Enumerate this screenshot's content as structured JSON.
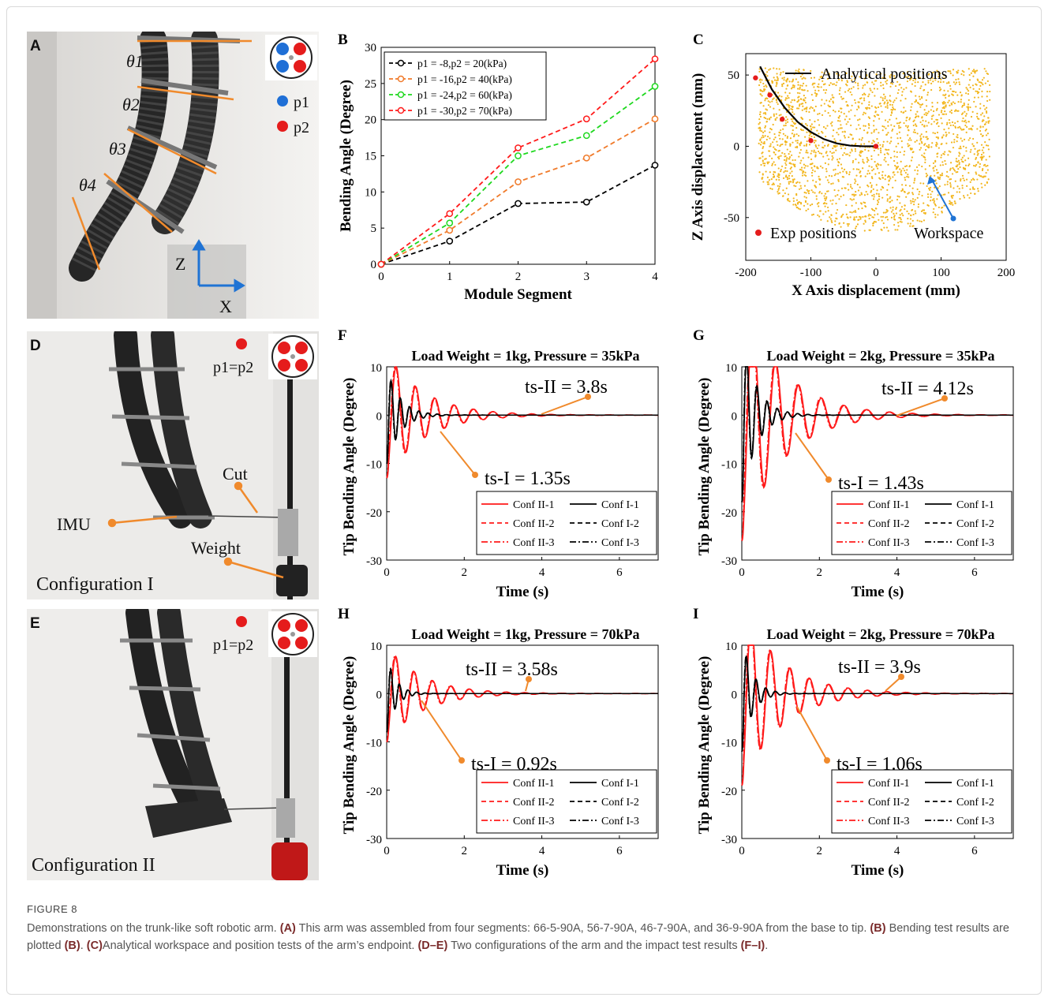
{
  "figure_label": "FIGURE 8",
  "caption": {
    "t1": "Demonstrations on the trunk-like soft robotic arm. ",
    "b1": "(A)",
    "t2": " This arm was assembled from four segments: 66-5-90A, 56-7-90A, 46-7-90A, and 36-9-90A from the base to tip. ",
    "b2": "(B)",
    "t3": " Bending test results are plotted ",
    "b3": "(B)",
    "t4": ". ",
    "b4": "(C)",
    "t5": "Analytical workspace and position tests of the arm’s endpoint. ",
    "b5": "(D–E)",
    "t6": " Two configurations of the arm and the impact test results ",
    "b6": "(F–I)",
    "t7": "."
  },
  "panels": {
    "A": {
      "letter": "A",
      "angles": [
        "θ1",
        "θ2",
        "θ3",
        "θ4"
      ],
      "legend_p1": "p1",
      "legend_p2": "p2",
      "axis_z": "Z",
      "axis_x": "X"
    },
    "D": {
      "letter": "D",
      "pressure": "p1=p2",
      "imu": "IMU",
      "cut": "Cut",
      "weight": "Weight",
      "config": "Configuration I"
    },
    "E": {
      "letter": "E",
      "pressure": "p1=p2",
      "config": "Configuration II"
    }
  },
  "colors": {
    "p1": "#1f6fd6",
    "p2": "#e51c1c",
    "orange_line": "#f08a2c",
    "workspace": "#f2b61e"
  },
  "chart_data": [
    {
      "id": "B",
      "type": "line",
      "letter": "B",
      "xlabel": "Module Segment",
      "ylabel": "Bending Angle (Degree)",
      "xlim": [
        0,
        4
      ],
      "ylim": [
        0,
        30
      ],
      "xticks": [
        0,
        1,
        2,
        3,
        4
      ],
      "yticks": [
        0,
        5,
        10,
        15,
        20,
        25,
        30
      ],
      "categories": [
        0,
        1,
        2,
        3,
        4
      ],
      "series": [
        {
          "name": "p1 = -8,p2 = 20(kPa)",
          "color": "#000000",
          "values": [
            0,
            3.2,
            8.4,
            8.6,
            13.7
          ]
        },
        {
          "name": "p1 = -16,p2 = 40(kPa)",
          "color": "#f07a2a",
          "values": [
            0,
            4.7,
            11.4,
            14.7,
            20.1
          ]
        },
        {
          "name": "p1 = -24,p2 = 60(kPa)",
          "color": "#1ed81e",
          "values": [
            0,
            5.7,
            15.0,
            17.8,
            24.6
          ]
        },
        {
          "name": "p1 = -30,p2 = 70(kPa)",
          "color": "#ff1a1a",
          "values": [
            0,
            7.0,
            16.1,
            20.1,
            28.4
          ]
        }
      ],
      "legend_position": "top-left"
    },
    {
      "id": "C",
      "type": "scatter",
      "letter": "C",
      "xlabel": "X Axis displacement (mm)",
      "ylabel": "Z Axis displacement (mm)",
      "xlim": [
        -200,
        200
      ],
      "ylim": [
        -80,
        65
      ],
      "xticks": [
        -200,
        -100,
        0,
        100,
        200
      ],
      "yticks": [
        -50,
        0,
        50
      ],
      "workspace_label": "Workspace",
      "analytical": {
        "name": "Analytical positions",
        "x": [
          -178,
          -160,
          -140,
          -120,
          -100,
          -80,
          -60,
          -40,
          -20,
          0
        ],
        "y": [
          56,
          40,
          27,
          17,
          10,
          5,
          2,
          0.5,
          0,
          0
        ]
      },
      "experimental": {
        "name": "Exp positions",
        "x": [
          -185,
          -163,
          -144,
          -100,
          0
        ],
        "y": [
          48,
          36,
          19,
          4,
          0
        ]
      },
      "legend_position": "top-right"
    },
    {
      "id": "F",
      "type": "line",
      "letter": "F",
      "title": "Load Weight = 1kg, Pressure = 35kPa",
      "xlabel": "Time (s)",
      "ylabel": "Tip Bending Angle (Degree)",
      "xlim": [
        0,
        7
      ],
      "ylim": [
        -30,
        10
      ],
      "xticks": [
        0,
        2,
        4,
        6
      ],
      "yticks": [
        -30,
        -20,
        -10,
        0,
        10
      ],
      "annotations": [
        "ts-II = 3.8s",
        "ts-I = 1.35s"
      ],
      "conf2": {
        "initial": -13,
        "peak": 5.3,
        "freq_hz": 2.0,
        "settle_s": 3.8
      },
      "conf1": {
        "initial": -10,
        "peak": 1.2,
        "freq_hz": 4.2,
        "settle_s": 1.35
      }
    },
    {
      "id": "G",
      "type": "line",
      "letter": "G",
      "title": "Load Weight = 2kg, Pressure = 35kPa",
      "xlabel": "Time (s)",
      "ylabel": "Tip Bending Angle (Degree)",
      "xlim": [
        0,
        7
      ],
      "ylim": [
        -30,
        10
      ],
      "xticks": [
        0,
        2,
        4,
        6
      ],
      "yticks": [
        -30,
        -20,
        -10,
        0,
        10
      ],
      "annotations": [
        "ts-II = 4.12s",
        "ts-I = 1.43s"
      ],
      "conf2": {
        "initial": -26,
        "peak": 9.8,
        "freq_hz": 1.7,
        "settle_s": 4.12
      },
      "conf1": {
        "initial": -18,
        "peak": 3.5,
        "freq_hz": 3.8,
        "settle_s": 1.43
      }
    },
    {
      "id": "H",
      "type": "line",
      "letter": "H",
      "title": "Load Weight = 1kg, Pressure = 70kPa",
      "xlabel": "Time (s)",
      "ylabel": "Tip Bending Angle (Degree)",
      "xlim": [
        0,
        7
      ],
      "ylim": [
        -30,
        10
      ],
      "xticks": [
        0,
        2,
        4,
        6
      ],
      "yticks": [
        -30,
        -20,
        -10,
        0,
        10
      ],
      "annotations": [
        "ts-II = 3.58s",
        "ts-I = 0.92s"
      ],
      "conf2": {
        "initial": -10,
        "peak": 4.0,
        "freq_hz": 2.1,
        "settle_s": 3.58
      },
      "conf1": {
        "initial": -8,
        "peak": 1.0,
        "freq_hz": 4.5,
        "settle_s": 0.92
      }
    },
    {
      "id": "I",
      "type": "line",
      "letter": "I",
      "title": "Load Weight = 2kg, Pressure = 70kPa",
      "xlabel": "Time (s)",
      "ylabel": "Tip Bending Angle (Degree)",
      "xlim": [
        0,
        7
      ],
      "ylim": [
        -30,
        10
      ],
      "xticks": [
        0,
        2,
        4,
        6
      ],
      "yticks": [
        -30,
        -20,
        -10,
        0,
        10
      ],
      "annotations": [
        "ts-II = 3.9s",
        "ts-I = 1.06s"
      ],
      "conf2": {
        "initial": -19,
        "peak": 7.6,
        "freq_hz": 2.0,
        "settle_s": 3.9
      },
      "conf1": {
        "initial": -12,
        "peak": 2.6,
        "freq_hz": 4.0,
        "settle_s": 1.06
      }
    }
  ],
  "impact_legend": [
    "Conf II-1",
    "Conf I-1",
    "Conf II-2",
    "Conf I-2",
    "Conf II-3",
    "Conf I-3"
  ]
}
